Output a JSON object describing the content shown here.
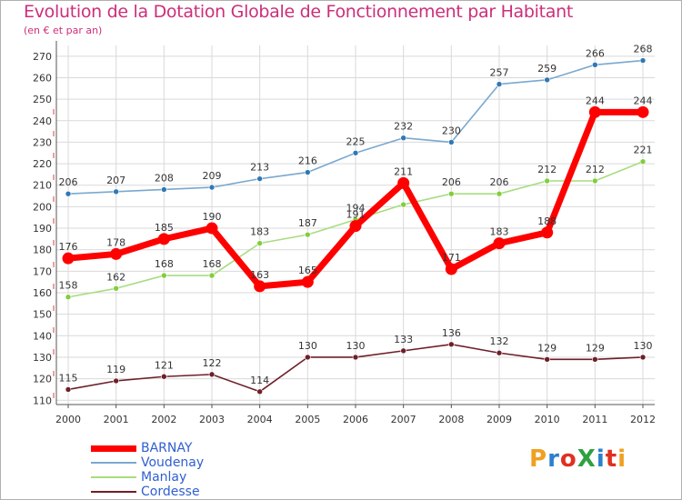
{
  "title": "Evolution de la Dotation Globale de Fonctionnement par Habitant",
  "subtitle": "(en € et par an)",
  "logo": "ProXiti",
  "logo_colors": [
    "#f0a020",
    "#2a7fd0",
    "#e03020",
    "#30a040",
    "#2a7fd0",
    "#e03020",
    "#f0a020"
  ],
  "chart_data": {
    "type": "line",
    "title": "Evolution de la Dotation Globale de Fonctionnement par Habitant",
    "subtitle": "(en € et par an)",
    "xlabel": "",
    "ylabel": "",
    "ylim": [
      108,
      275
    ],
    "yticks": [
      110,
      120,
      130,
      140,
      150,
      160,
      170,
      180,
      190,
      200,
      210,
      220,
      230,
      240,
      250,
      260,
      270
    ],
    "grid": true,
    "legend": "bottom-left",
    "x": [
      "2000",
      "2001",
      "2002",
      "2003",
      "2004",
      "2005",
      "2006",
      "2007",
      "2008",
      "2009",
      "2010",
      "2011",
      "2012"
    ],
    "series": [
      {
        "name": "Cordesse",
        "color": "#6e1f28",
        "values": [
          115,
          119,
          121,
          122,
          114,
          130,
          130,
          133,
          136,
          132,
          129,
          129,
          130
        ],
        "labels": [
          "115",
          "119",
          "121",
          "122",
          "114",
          "130",
          "130",
          "133",
          "136",
          "132",
          "129",
          "129",
          "130"
        ]
      },
      {
        "name": "Voudenay",
        "color": "#7aa8cf",
        "marker": "#2f78b5",
        "values": [
          206,
          207,
          208,
          209,
          213,
          216,
          225,
          232,
          230,
          257,
          259,
          266,
          268
        ],
        "labels": [
          "206",
          "207",
          "208",
          "209",
          "213",
          "216",
          "225",
          "232",
          "230",
          "257",
          "259",
          "266",
          "268"
        ]
      },
      {
        "name": "Manlay",
        "color": "#a8dc80",
        "marker": "#7fcf3a",
        "values": [
          158,
          162,
          168,
          168,
          183,
          187,
          194,
          201,
          206,
          206,
          212,
          212,
          221
        ],
        "labels": [
          "158",
          "162",
          "168",
          "168",
          "183",
          "187",
          "194",
          "",
          "206",
          "206",
          "212",
          "212",
          "221"
        ]
      },
      {
        "name": "BARNAY",
        "color": "#ff0000",
        "values": [
          176,
          178,
          185,
          190,
          163,
          165,
          191,
          211,
          171,
          183,
          188,
          244,
          244
        ],
        "labels": [
          "176",
          "178",
          "185",
          "190",
          "163",
          "165",
          "191",
          "211",
          "171",
          "183",
          "188",
          "244",
          "244"
        ]
      }
    ],
    "legend_order": [
      "BARNAY",
      "Voudenay",
      "Manlay",
      "Cordesse"
    ]
  }
}
